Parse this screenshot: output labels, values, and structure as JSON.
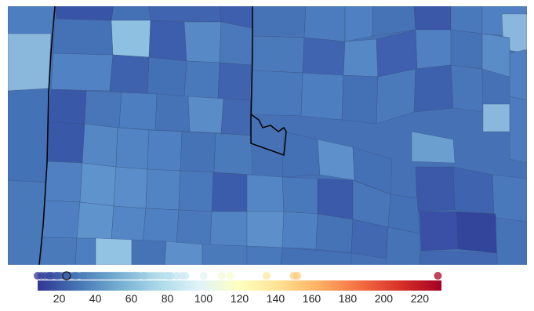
{
  "map": {
    "region_style": "choropleth-counties",
    "state_border_color": "#000000",
    "county_border_color": "#3a4f78",
    "palette": [
      "#313695",
      "#4575b4",
      "#74add1",
      "#abd9e9",
      "#e0f3f8",
      "#ffffbf",
      "#fee090",
      "#fdae61",
      "#f46d43",
      "#d73027",
      "#a50026"
    ]
  },
  "legend": {
    "scale_min": 8,
    "scale_max": 232,
    "ticks": [
      "20",
      "40",
      "60",
      "80",
      "100",
      "120",
      "140",
      "160",
      "180",
      "200",
      "220"
    ],
    "tick_values": [
      20,
      40,
      60,
      80,
      100,
      120,
      140,
      160,
      180,
      200,
      220
    ],
    "highlighted_value": 24,
    "value_dots": [
      8,
      10,
      12,
      14,
      15,
      16,
      18,
      19,
      20,
      22,
      24,
      25,
      26,
      28,
      29,
      30,
      32,
      33,
      34,
      35,
      36,
      37,
      38,
      39,
      40,
      41,
      42,
      43,
      44,
      45,
      46,
      47,
      48,
      49,
      50,
      51,
      52,
      53,
      54,
      55,
      56,
      57,
      58,
      59,
      60,
      61,
      62,
      63,
      64,
      66,
      67,
      68,
      70,
      72,
      74,
      76,
      78,
      80,
      81,
      82,
      85,
      88,
      90,
      100,
      110,
      115,
      135,
      150,
      152,
      230
    ]
  }
}
